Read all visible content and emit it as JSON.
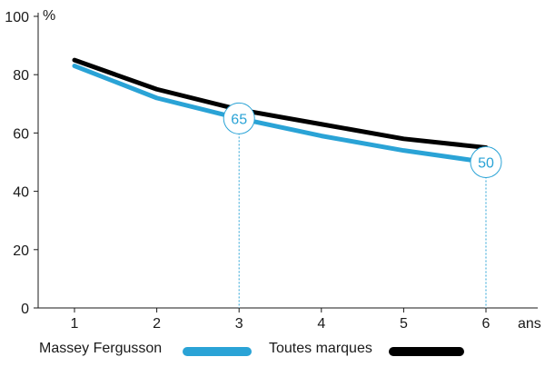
{
  "chart_data": {
    "type": "line",
    "x": [
      1,
      2,
      3,
      4,
      5,
      6
    ],
    "xlabel": "ans",
    "ylabel": "%",
    "ylim": [
      0,
      100
    ],
    "yticks": [
      0,
      20,
      40,
      60,
      80,
      100
    ],
    "grid": false,
    "legend_position": "bottom",
    "series": [
      {
        "name": "Massey Fergusson",
        "color": "#2aa3d6",
        "values": [
          83,
          72,
          65,
          59,
          54,
          50
        ]
      },
      {
        "name": "Toutes marques",
        "color": "#000000",
        "values": [
          85,
          75,
          68,
          63,
          58,
          55
        ]
      }
    ],
    "annotations": [
      {
        "series": 0,
        "x": 3,
        "label": "65"
      },
      {
        "series": 0,
        "x": 6,
        "label": "50"
      }
    ]
  }
}
